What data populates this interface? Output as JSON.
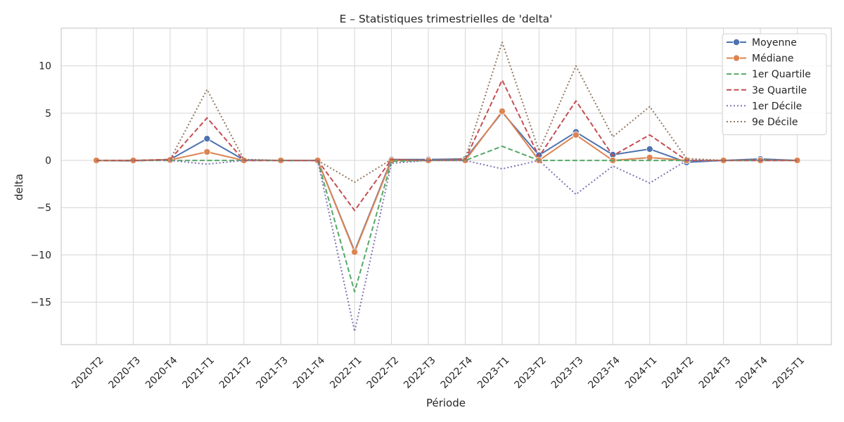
{
  "chart_data": {
    "type": "line",
    "title": "E – Statistiques trimestrielles de 'delta'",
    "xlabel": "Période",
    "ylabel": "delta",
    "ylim": [
      -19.5,
      14
    ],
    "yticks": [
      -15,
      -10,
      -5,
      0,
      5,
      10
    ],
    "ytick_labels": [
      "−15",
      "−10",
      "−5",
      "0",
      "5",
      "10"
    ],
    "grid": true,
    "legend_position": "top-right",
    "categories": [
      "2020-T2",
      "2020-T3",
      "2020-T4",
      "2021-T1",
      "2021-T2",
      "2021-T3",
      "2021-T4",
      "2022-T1",
      "2022-T2",
      "2022-T3",
      "2022-T4",
      "2023-T1",
      "2023-T2",
      "2023-T3",
      "2023-T4",
      "2024-T1",
      "2024-T2",
      "2024-T3",
      "2024-T4",
      "2025-T1"
    ],
    "series": [
      {
        "name": "Moyenne",
        "color": "#4c72b0",
        "dash": "solid",
        "marker": true,
        "values": [
          0,
          -0.05,
          0.1,
          2.3,
          0.05,
          0,
          0,
          -9.6,
          0.1,
          0.1,
          0.15,
          5.1,
          0.55,
          3.0,
          0.6,
          1.2,
          -0.2,
          0,
          0.15,
          0
        ]
      },
      {
        "name": "Médiane",
        "color": "#dd8452",
        "dash": "solid",
        "marker": true,
        "values": [
          0,
          0,
          0.05,
          0.9,
          0,
          0,
          0,
          -9.7,
          0,
          0,
          0,
          5.2,
          0,
          2.7,
          0,
          0.3,
          0,
          0,
          0,
          0
        ]
      },
      {
        "name": "1er Quartile",
        "color": "#55a868",
        "dash": "dashed",
        "marker": false,
        "values": [
          0,
          0,
          0,
          0,
          0,
          0,
          0,
          -13.9,
          -0.1,
          0,
          0,
          1.5,
          0,
          0,
          0,
          0,
          0,
          0,
          0,
          0
        ]
      },
      {
        "name": "3e Quartile",
        "color": "#c44e52",
        "dash": "dashed",
        "marker": false,
        "values": [
          0,
          0,
          0.1,
          4.5,
          0,
          0,
          0,
          -5.3,
          0.1,
          0,
          0.1,
          8.5,
          0.4,
          6.3,
          0.5,
          2.7,
          0,
          0,
          0,
          0
        ]
      },
      {
        "name": "1er Décile",
        "color": "#8172b3",
        "dash": "dotted",
        "marker": false,
        "values": [
          0,
          0,
          0,
          -0.4,
          0,
          0,
          0,
          -18.1,
          -0.3,
          0,
          0,
          -0.9,
          0,
          -3.6,
          -0.6,
          -2.4,
          0,
          0,
          0,
          0
        ]
      },
      {
        "name": "9e Décile",
        "color": "#937860",
        "dash": "dotted",
        "marker": false,
        "values": [
          0,
          0,
          0.1,
          7.5,
          0.1,
          0,
          0,
          -2.3,
          0.1,
          0,
          0.2,
          12.5,
          1.0,
          10.0,
          2.5,
          5.7,
          0.2,
          0,
          0.1,
          0
        ]
      }
    ]
  }
}
